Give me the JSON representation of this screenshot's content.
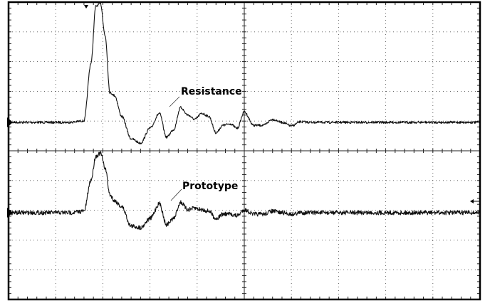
{
  "chart_data": {
    "type": "line",
    "title": "",
    "xlabel": "",
    "ylabel": "",
    "grid": true,
    "grid_divisions": {
      "x": 10,
      "y": 10
    },
    "x": [
      0,
      0.5,
      1.0,
      1.3,
      1.6,
      1.75,
      1.85,
      1.95,
      2.05,
      2.15,
      2.25,
      2.4,
      2.6,
      2.8,
      3.0,
      3.2,
      3.35,
      3.5,
      3.65,
      3.8,
      3.95,
      4.1,
      4.25,
      4.4,
      4.55,
      4.7,
      4.85,
      5.0,
      5.2,
      5.4,
      5.6,
      5.8,
      6.0,
      6.2,
      6.4,
      6.6,
      6.8,
      7.0,
      7.5,
      8.0,
      8.5,
      9.0,
      9.5,
      10.0
    ],
    "series": [
      {
        "name": "Resistance",
        "values": [
          0,
          0,
          0,
          0,
          0.05,
          2.0,
          3.9,
          4.0,
          2.9,
          1.0,
          0.9,
          0.2,
          -0.55,
          -0.7,
          -0.2,
          0.3,
          -0.5,
          -0.25,
          0.5,
          0.25,
          0.1,
          0.3,
          0.2,
          -0.35,
          -0.1,
          -0.05,
          -0.2,
          0.35,
          -0.1,
          -0.1,
          0.1,
          0.0,
          -0.12,
          0.02,
          0.0,
          0,
          0,
          0,
          0,
          0,
          0,
          0,
          0,
          0
        ]
      },
      {
        "name": "Prototype",
        "values": [
          0,
          0,
          0,
          0,
          0.05,
          1.1,
          1.9,
          2.0,
          1.5,
          0.6,
          0.4,
          0.2,
          -0.45,
          -0.5,
          -0.2,
          0.3,
          -0.4,
          -0.2,
          0.35,
          0.1,
          0.15,
          0.1,
          0.05,
          -0.2,
          -0.05,
          -0.05,
          -0.1,
          0.1,
          -0.05,
          -0.05,
          0.05,
          0.0,
          -0.05,
          0.0,
          0.0,
          0,
          0,
          0,
          0,
          0,
          0,
          0,
          0,
          0
        ]
      }
    ],
    "annotations": [
      {
        "text": "Resistance",
        "series": "Resistance"
      },
      {
        "text": "Prototype",
        "series": "Prototype"
      }
    ]
  },
  "icons": {
    "ch1_marker": "channel-ground-marker",
    "ch2_marker": "channel-ground-marker",
    "trigger_marker": "trigger-marker",
    "arrow": "left-arrow-icon"
  }
}
